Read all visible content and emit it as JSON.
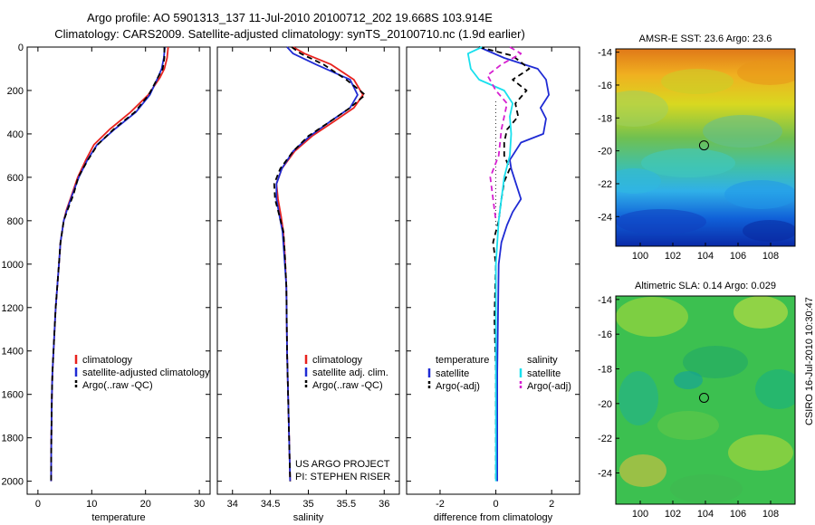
{
  "header": {
    "title_line1": "Argo profile: AO 5901313_137 11-Jul-2010 20100712_202 19.668S 103.914E",
    "title_line2": "Climatology: CARS2009. Satellite-adjusted climatology: synTS_20100710.nc (1.9d earlier)"
  },
  "side_label": "CSIRO 16-Jul-2010 10:30:47",
  "colors": {
    "climatology": "#e8221e",
    "satellite": "#1f2bd4",
    "argo": "#000000",
    "sal_satellite": "#19e0ee",
    "sal_argo": "#d620d0"
  },
  "chart_data": [
    {
      "type": "line",
      "name": "temperature-profile",
      "xlabel": "temperature",
      "xlim": [
        -2,
        32
      ],
      "ylim": [
        0,
        2060
      ],
      "xticks": [
        0,
        10,
        20,
        30
      ],
      "yticks": [
        0,
        200,
        400,
        600,
        800,
        1000,
        1200,
        1400,
        1600,
        1800,
        2000
      ],
      "y_reversed": true,
      "legend": [
        "climatology",
        "satellite-adjusted climatology",
        "Argo(..raw -QC)"
      ],
      "series": [
        {
          "name": "climatology",
          "color": "#e8221e",
          "dash": "",
          "x": [
            24.2,
            24.0,
            23.5,
            22.7,
            20.5,
            17.2,
            13.3,
            10.4,
            8.9,
            7.4,
            6.3,
            5.3,
            4.8,
            4.2,
            3.9,
            3.6,
            3.3,
            3.1,
            2.9,
            2.7,
            2.6,
            2.5,
            2.45
          ],
          "y": [
            0,
            50,
            100,
            140,
            220,
            300,
            380,
            450,
            520,
            600,
            680,
            750,
            800,
            900,
            1000,
            1100,
            1200,
            1300,
            1400,
            1500,
            1600,
            1800,
            2000
          ]
        },
        {
          "name": "satellite-adjusted climatology",
          "color": "#1f2bd4",
          "dash": "",
          "x": [
            23.6,
            23.4,
            23.0,
            22.3,
            20.8,
            18.2,
            14.2,
            11.0,
            9.2,
            7.6,
            6.4,
            5.4,
            4.8,
            4.2,
            3.9,
            3.6,
            3.3,
            3.1,
            2.9,
            2.7,
            2.6,
            2.5,
            2.45
          ],
          "y": [
            0,
            50,
            100,
            140,
            220,
            300,
            380,
            450,
            520,
            600,
            680,
            750,
            800,
            900,
            1000,
            1100,
            1200,
            1300,
            1400,
            1500,
            1600,
            1800,
            2000
          ]
        },
        {
          "name": "Argo(..raw -QC)",
          "color": "#000000",
          "dash": "6,4",
          "x": [
            23.5,
            23.5,
            23.2,
            22.3,
            20.6,
            18.0,
            14.0,
            11.1,
            9.3,
            7.5,
            6.6,
            5.5,
            4.8,
            4.2,
            3.9,
            3.6,
            3.3,
            3.1,
            2.9,
            2.7,
            2.6,
            2.5,
            2.45
          ],
          "y": [
            0,
            50,
            100,
            140,
            220,
            300,
            380,
            450,
            520,
            600,
            680,
            750,
            800,
            900,
            1000,
            1100,
            1200,
            1300,
            1400,
            1500,
            1600,
            1800,
            2000
          ]
        }
      ]
    },
    {
      "type": "line",
      "name": "salinity-profile",
      "xlabel": "salinity",
      "xlim": [
        33.8,
        36.2
      ],
      "ylim": [
        0,
        2060
      ],
      "xticks": [
        34,
        34.5,
        35,
        35.5,
        36
      ],
      "y_reversed": true,
      "legend": [
        "climatology",
        "satellite adj. clim.",
        "Argo(..raw -QC)"
      ],
      "annotation": [
        "US ARGO PROJECT",
        "PI: STEPHEN RISER"
      ],
      "series": [
        {
          "name": "climatology",
          "color": "#e8221e",
          "dash": "",
          "x": [
            34.8,
            34.95,
            35.3,
            35.6,
            35.72,
            35.6,
            35.35,
            35.05,
            34.82,
            34.65,
            34.58,
            34.6,
            34.64,
            34.67,
            34.69,
            34.71,
            34.72,
            34.74,
            34.76
          ],
          "y": [
            0,
            30,
            80,
            150,
            220,
            280,
            340,
            410,
            480,
            560,
            630,
            700,
            780,
            850,
            950,
            1100,
            1400,
            1700,
            2000
          ]
        },
        {
          "name": "satellite adj. clim.",
          "color": "#1f2bd4",
          "dash": "",
          "x": [
            34.72,
            34.8,
            35.1,
            35.55,
            35.65,
            35.55,
            35.3,
            35.02,
            34.8,
            34.65,
            34.58,
            34.58,
            34.62,
            34.66,
            34.68,
            34.71,
            34.72,
            34.74,
            34.76
          ],
          "y": [
            0,
            30,
            80,
            150,
            220,
            280,
            340,
            410,
            480,
            560,
            630,
            700,
            780,
            850,
            950,
            1100,
            1400,
            1700,
            2000
          ]
        },
        {
          "name": "Argo(..raw -QC)",
          "color": "#000000",
          "dash": "6,4",
          "x": [
            34.78,
            34.9,
            35.2,
            35.5,
            35.75,
            35.55,
            35.3,
            35.0,
            34.8,
            34.63,
            34.55,
            34.56,
            34.62,
            34.67,
            34.69,
            34.71,
            34.72,
            34.74,
            34.76
          ],
          "y": [
            0,
            30,
            80,
            150,
            220,
            280,
            340,
            410,
            480,
            560,
            630,
            700,
            780,
            850,
            950,
            1100,
            1400,
            1700,
            2000
          ]
        }
      ]
    },
    {
      "type": "line",
      "name": "difference-profile",
      "xlabel": "difference from climatology",
      "xlim": [
        -3.2,
        3.0
      ],
      "ylim": [
        0,
        2060
      ],
      "xticks": [
        -2,
        0,
        2
      ],
      "y_reversed": true,
      "legend_groups": [
        {
          "title": "temperature",
          "items": [
            "satellite",
            "Argo(-adj)"
          ]
        },
        {
          "title": "salinity",
          "items": [
            "satellite",
            "Argo(-adj)"
          ]
        }
      ],
      "series": [
        {
          "name": "temperature satellite",
          "color": "#1f2bd4",
          "dash": "",
          "x": [
            -0.6,
            0.3,
            1.5,
            1.8,
            1.9,
            1.6,
            1.8,
            1.7,
            0.9,
            0.5,
            0.55,
            0.7,
            0.9,
            0.6,
            0.4,
            0.2,
            0.1,
            0.05,
            0.05
          ],
          "y": [
            0,
            50,
            100,
            150,
            220,
            280,
            330,
            400,
            440,
            520,
            560,
            620,
            700,
            760,
            820,
            900,
            1000,
            1500,
            2000
          ]
        },
        {
          "name": "temperature Argo(-adj)",
          "color": "#000000",
          "dash": "6,4",
          "x": [
            -0.6,
            0.6,
            1.2,
            0.6,
            1.1,
            0.7,
            0.8,
            0.4,
            0.3,
            0.3,
            0.5,
            0.3,
            0.2,
            0.1,
            -0.1,
            0.0,
            -0.05,
            0.0,
            0.0
          ],
          "y": [
            0,
            40,
            100,
            150,
            200,
            260,
            320,
            380,
            440,
            500,
            560,
            620,
            700,
            800,
            900,
            1000,
            1250,
            1500,
            2000
          ]
        },
        {
          "name": "salinity satellite",
          "color": "#19e0ee",
          "dash": "",
          "x": [
            -0.5,
            -1.0,
            -0.9,
            -0.6,
            0.3,
            0.6,
            0.5,
            0.55,
            0.5,
            0.3,
            0.1,
            0.0,
            0.0
          ],
          "y": [
            0,
            30,
            100,
            150,
            200,
            260,
            320,
            400,
            500,
            600,
            800,
            1000,
            2000
          ]
        },
        {
          "name": "salinity Argo(-adj)",
          "color": "#d620d0",
          "dash": "6,4",
          "x": [
            0.5,
            0.9,
            0.2,
            -0.3,
            0.0,
            0.4,
            0.2,
            0.1,
            -0.2,
            -0.1,
            0.0
          ],
          "y": [
            0,
            30,
            80,
            130,
            200,
            260,
            380,
            500,
            600,
            700,
            800
          ]
        }
      ]
    },
    {
      "type": "heatmap",
      "name": "sst-map",
      "title": "AMSR-E SST: 23.6 Argo: 23.6",
      "xlim": [
        98.5,
        109.5
      ],
      "ylim": [
        -25.8,
        -13.8
      ],
      "xticks": [
        100,
        102,
        104,
        106,
        108
      ],
      "yticks": [
        -14,
        -16,
        -18,
        -20,
        -22,
        -24
      ],
      "marker": {
        "lon": 103.914,
        "lat": -19.668
      }
    },
    {
      "type": "heatmap",
      "name": "sla-map",
      "title": "Altimetric SLA: 0.14 Argo: 0.029",
      "xlim": [
        98.5,
        109.5
      ],
      "ylim": [
        -25.8,
        -13.8
      ],
      "xticks": [
        100,
        102,
        104,
        106,
        108
      ],
      "yticks": [
        -14,
        -16,
        -18,
        -20,
        -22,
        -24
      ],
      "marker": {
        "lon": 103.914,
        "lat": -19.668
      }
    }
  ]
}
